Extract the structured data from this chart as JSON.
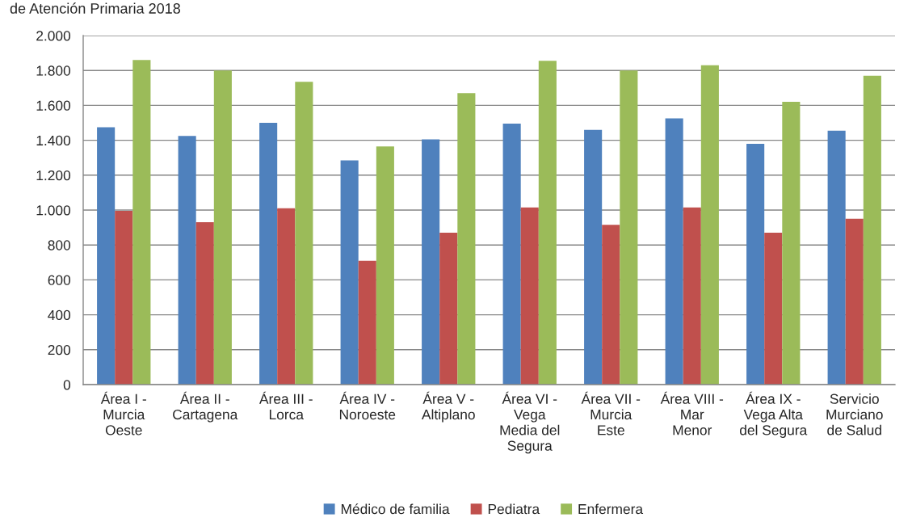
{
  "chart_data": {
    "type": "bar",
    "title": "de Atención Primaria 2018",
    "categories": [
      "Área I -\nMurcia\nOeste",
      "Área II -\nCartagena",
      "Área III -\nLorca",
      "Área IV -\nNoroeste",
      "Área V -\nAltiplano",
      "Área VI -\nVega\nMedia del\nSegura",
      "Área VII -\nMurcia\nEste",
      "Área VIII -\nMar\nMenor",
      "Área IX -\nVega Alta\ndel Segura",
      "Servicio\nMurciano\nde Salud"
    ],
    "series": [
      {
        "name": "Médico de familia",
        "color": "#4f81bd",
        "values": [
          1475,
          1425,
          1500,
          1285,
          1405,
          1495,
          1460,
          1525,
          1380,
          1455
        ]
      },
      {
        "name": "Pediatra",
        "color": "#c0504d",
        "values": [
          995,
          930,
          1010,
          710,
          870,
          1015,
          915,
          1015,
          870,
          950
        ]
      },
      {
        "name": "Enfermera",
        "color": "#9bbb59",
        "values": [
          1860,
          1800,
          1735,
          1365,
          1670,
          1855,
          1800,
          1830,
          1620,
          1770
        ]
      }
    ],
    "ylim": [
      0,
      2000
    ],
    "yticks": [
      {
        "value": 0,
        "label": "0"
      },
      {
        "value": 200,
        "label": "200"
      },
      {
        "value": 400,
        "label": "400"
      },
      {
        "value": 600,
        "label": "600"
      },
      {
        "value": 800,
        "label": "800"
      },
      {
        "value": 1000,
        "label": "1.000"
      },
      {
        "value": 1200,
        "label": "1.200"
      },
      {
        "value": 1400,
        "label": "1.400"
      },
      {
        "value": 1600,
        "label": "1.600"
      },
      {
        "value": 1800,
        "label": "1.800"
      },
      {
        "value": 2000,
        "label": "2.000"
      }
    ],
    "grid": "y",
    "legend": "bottom"
  }
}
